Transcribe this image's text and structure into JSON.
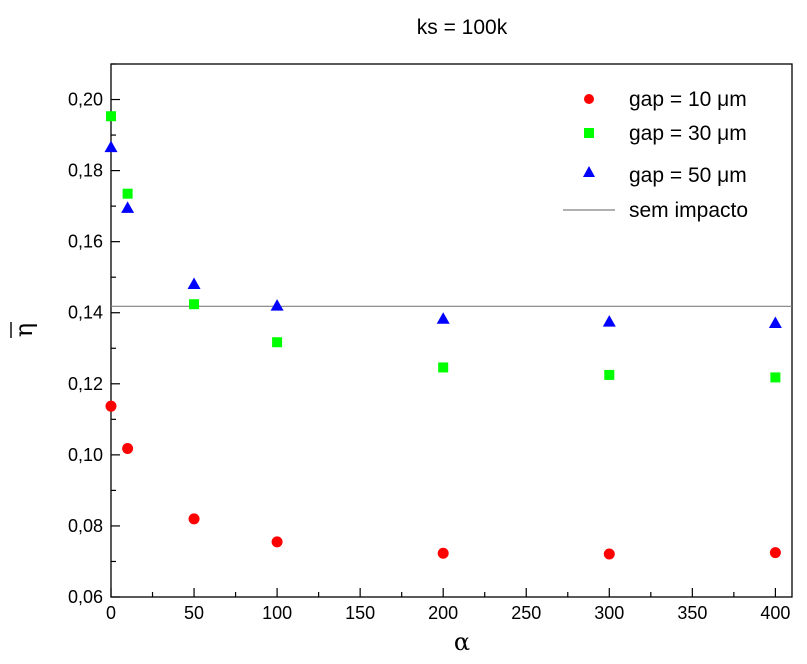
{
  "chart_data": {
    "type": "scatter",
    "title": "ks = 100k",
    "xlabel": "α",
    "ylabel": "η",
    "xlim": [
      0,
      410
    ],
    "ylim": [
      0.06,
      0.21
    ],
    "x_ticks": [
      0,
      50,
      100,
      150,
      200,
      250,
      300,
      350,
      400
    ],
    "x_tick_labels": [
      "0",
      "50",
      "100",
      "150",
      "200",
      "250",
      "300",
      "350",
      "400"
    ],
    "y_ticks": [
      0.06,
      0.08,
      0.1,
      0.12,
      0.14,
      0.16,
      0.18,
      0.2
    ],
    "y_tick_labels": [
      "0,06",
      "0,08",
      "0,10",
      "0,12",
      "0,14",
      "0,16",
      "0,18",
      "0,20"
    ],
    "grid": false,
    "legend_position": "top-right",
    "series": [
      {
        "name": "gap = 10 μm",
        "marker": "circle",
        "color": "#ff0000",
        "x": [
          0,
          10,
          50,
          100,
          200,
          300,
          400
        ],
        "y": [
          0.1137,
          0.1018,
          0.082,
          0.0755,
          0.0723,
          0.0721,
          0.0725
        ]
      },
      {
        "name": "gap = 30 μm",
        "marker": "square",
        "color": "#00ff00",
        "x": [
          0,
          10,
          50,
          100,
          200,
          300,
          400
        ],
        "y": [
          0.1953,
          0.1735,
          0.1424,
          0.1317,
          0.1246,
          0.1225,
          0.1218
        ]
      },
      {
        "name": "gap = 50 μm",
        "marker": "triangle",
        "color": "#0000ff",
        "x": [
          0,
          10,
          50,
          100,
          200,
          300,
          400
        ],
        "y": [
          0.1866,
          0.1695,
          0.1481,
          0.142,
          0.1383,
          0.1375,
          0.1371
        ]
      }
    ],
    "reference_line": {
      "name": "sem impacto",
      "y": 0.1418,
      "color": "#808080"
    }
  }
}
